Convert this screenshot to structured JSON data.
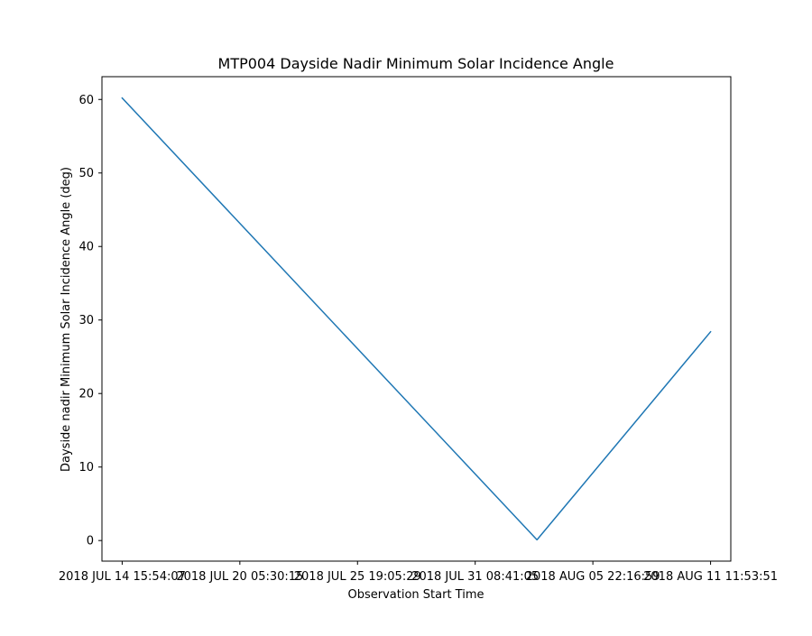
{
  "chart_data": {
    "type": "line",
    "title": "MTP004 Dayside Nadir Minimum Solar Incidence Angle",
    "xlabel": "Observation Start Time",
    "ylabel": "Dayside nadir Minimum Solar Incidence Angle (deg)",
    "x_tick_labels": [
      "2018 JUL 14 15:54:07",
      "2018 JUL 20 05:30:15",
      "2018 JUL 25 19:05:29",
      "2018 JUL 31 08:41:05",
      "2018 AUG 05 22:16:59",
      "2018 AUG 11 11:53:51"
    ],
    "y_ticks": [
      0,
      10,
      20,
      30,
      40,
      50,
      60
    ],
    "ylim": [
      -2.8,
      63.1
    ],
    "xlim": [
      "2018-07-13 16:57",
      "2018-08-12 10:52"
    ],
    "grid": false,
    "legend": "none",
    "line_color": "#1f77b4",
    "series": [
      {
        "x": [
          "2018-07-14 15:54:07",
          "2018-08-03 06:50:00",
          "2018-08-11 11:53:51"
        ],
        "values": [
          60.2,
          0.1,
          28.4
        ]
      }
    ]
  }
}
